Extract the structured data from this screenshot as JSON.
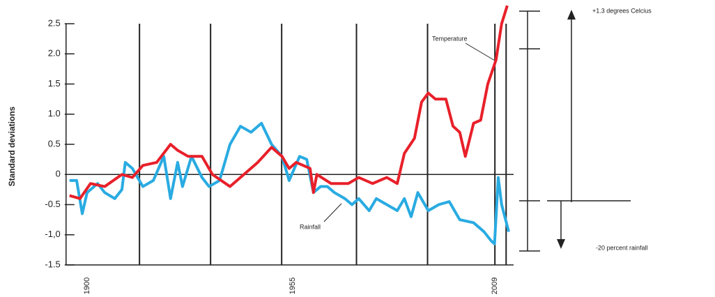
{
  "chart_data": {
    "type": "line",
    "ylabel": "Standard deviations",
    "xlim": [
      1894,
      2014
    ],
    "xticks": [
      1900,
      1955,
      2009
    ],
    "xgrid_lines": [
      1914,
      1933,
      1952,
      1972,
      1991,
      2009,
      2012
    ],
    "ylim": [
      -1.5,
      2.5
    ],
    "yticks": [
      2.5,
      {
        "value": 2,
        "label": "2.0"
      },
      1.5,
      {
        "value": 1,
        "label": "1.0"
      },
      0.5,
      0,
      -0.5,
      {
        "value": -1,
        "label": "-1,0"
      },
      -1.5
    ],
    "series": [
      {
        "name": "Temperature",
        "color": "#e8202a",
        "x": [
          1895.3,
          1898.1,
          1900.9,
          1904.7,
          1909.3,
          1912.1,
          1914.9,
          1918.6,
          1922.3,
          1924.2,
          1927.0,
          1930.7,
          1933.5,
          1938.2,
          1941.9,
          1945.6,
          1949.3,
          1952.1,
          1954.0,
          1955.9,
          1959.6,
          1960.5,
          1961.4,
          1965.2,
          1969.8,
          1972.6,
          1976.3,
          1980.1,
          1982.9,
          1984.8,
          1987.5,
          1989.4,
          1991.2,
          1993.1,
          1995.9,
          1997.8,
          1999.6,
          2001.1,
          2003.3,
          2005.2,
          2007.1,
          2009.3,
          2010.8,
          2012.3
        ],
        "values": [
          -0.35,
          -0.4,
          -0.15,
          -0.2,
          0,
          -0.05,
          0.15,
          0.2,
          0.5,
          0.4,
          0.3,
          0.3,
          0,
          -0.2,
          0,
          0.2,
          0.45,
          0.3,
          0.1,
          0.2,
          0.1,
          -0.3,
          0,
          -0.15,
          -0.15,
          -0.05,
          -0.15,
          -0.05,
          -0.15,
          0.35,
          0.6,
          1.2,
          1.35,
          1.25,
          1.25,
          0.8,
          0.7,
          0.3,
          0.85,
          0.9,
          1.5,
          1.9,
          2.5,
          2.8
        ]
      },
      {
        "name": "Rainfall",
        "color": "#29abe2",
        "x": [
          1895.3,
          1897.2,
          1898.7,
          1900,
          1902.8,
          1904.7,
          1907.4,
          1909.3,
          1910.2,
          1912.1,
          1914.9,
          1917.7,
          1920.5,
          1922.3,
          1924.2,
          1925.5,
          1927.9,
          1930.7,
          1932.6,
          1935.4,
          1938.2,
          1941,
          1943.8,
          1946.6,
          1949.3,
          1952.1,
          1954,
          1956.8,
          1958.7,
          1960.5,
          1962.4,
          1964.2,
          1966.1,
          1968.9,
          1970.8,
          1972.6,
          1975.4,
          1977.3,
          1980.1,
          1982.9,
          1984.8,
          1986.6,
          1988.4,
          1991.2,
          1994,
          1996.8,
          1999.6,
          2003.3,
          2006.1,
          2008,
          2008.9,
          2009.9,
          2010.8,
          2012.7
        ],
        "values": [
          -0.1,
          -0.1,
          -0.65,
          -0.3,
          -0.15,
          -0.3,
          -0.4,
          -0.25,
          0.2,
          0.1,
          -0.2,
          -0.1,
          0.3,
          -0.4,
          0.2,
          -0.2,
          0.3,
          -0.05,
          -0.2,
          -0.1,
          0.5,
          0.8,
          0.7,
          0.85,
          0.5,
          0.3,
          -0.1,
          0.3,
          0.25,
          -0.3,
          -0.2,
          -0.2,
          -0.3,
          -0.4,
          -0.5,
          -0.4,
          -0.6,
          -0.4,
          -0.5,
          -0.6,
          -0.4,
          -0.7,
          -0.3,
          -0.6,
          -0.5,
          -0.45,
          -0.75,
          -0.8,
          -0.95,
          -1.1,
          -1.15,
          -0.05,
          -0.5,
          -0.95
        ]
      }
    ],
    "annotations": [
      "+1.3 degrees Celcius",
      "-20 percent rainfall"
    ]
  }
}
